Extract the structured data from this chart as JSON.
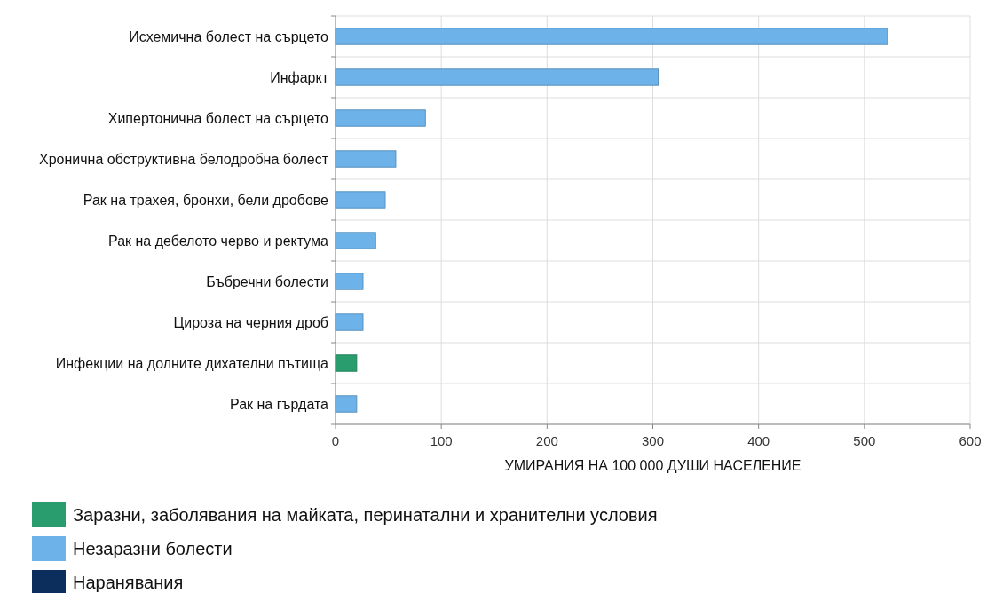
{
  "chart_data": {
    "type": "bar",
    "orientation": "horizontal",
    "xlabel": "УМИРАНИЯ НА 100 000 ДУШИ НАСЕЛЕНИЕ",
    "categories": [
      "Исхемична болест на сърцето",
      "Инфаркт",
      "Хипертонична болест на сърцето",
      "Хронична обструктивна белодробна болест",
      "Рак на трахея, бронхи, бели дробове",
      "Рак на дебелото черво и ректума",
      "Бъбречни болести",
      "Цироза на черния дроб",
      "Инфекции на долните дихателни пътища",
      "Рак на гърдата"
    ],
    "series": [
      {
        "name": "Заразни, заболявания на майката, перинатални и хранителни условия",
        "color": "#2a9d6f",
        "values": [
          null,
          null,
          null,
          null,
          null,
          null,
          null,
          null,
          20,
          null
        ]
      },
      {
        "name": "Незаразни болести",
        "color": "#6db3ea",
        "values": [
          522,
          305,
          85,
          57,
          47,
          38,
          26,
          26,
          null,
          20
        ]
      },
      {
        "name": "Наранявания",
        "color": "#0b2e5c",
        "values": [
          null,
          null,
          null,
          null,
          null,
          null,
          null,
          null,
          null,
          null
        ]
      }
    ],
    "xlim": [
      0,
      600
    ],
    "xticks": [
      0,
      100,
      200,
      300,
      400,
      500,
      600
    ],
    "grid": true,
    "legend": "bottom"
  }
}
